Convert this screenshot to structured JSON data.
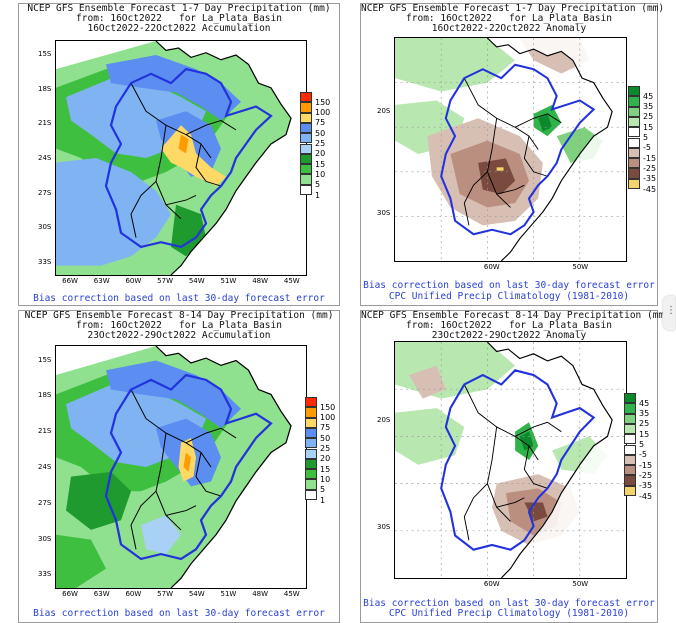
{
  "panels": [
    {
      "title": [
        "NCEP GFS Ensemble Forecast 1-7 Day Precipitation (mm)",
        "from: 16Oct2022   for La_Plata_Basin",
        "16Oct2022-22Oct2022 Accumulation"
      ],
      "captions": [
        "Bias correction based on last 30-day forecast error"
      ],
      "lat_labels": [
        "15S",
        "18S",
        "21S",
        "24S",
        "27S",
        "30S",
        "33S"
      ],
      "lon_labels": [
        "66W",
        "63W",
        "60W",
        "57W",
        "54W",
        "51W",
        "48W",
        "45W"
      ],
      "legend": [
        "150",
        "100",
        "75",
        "50",
        "25",
        "20",
        "15",
        "10",
        "5",
        "1"
      ],
      "kind": "accumulation"
    },
    {
      "title": [
        "NCEP GFS Ensemble Forecast 1-7 Day Precipitation (mm)",
        "from: 16Oct2022   for La_Plata_Basin",
        "16Oct2022-22Oct2022 Anomaly"
      ],
      "captions": [
        "Bias correction based on last 30-day forecast error",
        "CPC Unified Precip Climatology (1981-2010)"
      ],
      "lat_labels": [
        "20S",
        "30S"
      ],
      "lon_labels": [
        "60W",
        "50W"
      ],
      "legend": [
        "45",
        "35",
        "25",
        "15",
        "5",
        "-5",
        "-15",
        "-25",
        "-35",
        "-45"
      ],
      "kind": "anomaly"
    },
    {
      "title": [
        "NCEP GFS Ensemble Forecast 8-14 Day Precipitation (mm)",
        "from: 16Oct2022   for La_Plata_Basin",
        "23Oct2022-29Oct2022 Accumulation"
      ],
      "captions": [
        "Bias correction based on last 30-day forecast error"
      ],
      "lat_labels": [
        "15S",
        "18S",
        "21S",
        "24S",
        "27S",
        "30S",
        "33S"
      ],
      "lon_labels": [
        "66W",
        "63W",
        "60W",
        "57W",
        "54W",
        "51W",
        "48W",
        "45W"
      ],
      "legend": [
        "150",
        "100",
        "75",
        "50",
        "25",
        "20",
        "15",
        "10",
        "5",
        "1"
      ],
      "kind": "accumulation"
    },
    {
      "title": [
        "NCEP GFS Ensemble Forecast 8-14 Day Precipitation (mm)",
        "from: 16Oct2022   for La_Plata_Basin",
        "23Oct2022-29Oct2022 Anomaly"
      ],
      "captions": [
        "Bias correction based on last 30-day forecast error",
        "CPC Unified Precip Climatology (1981-2010)"
      ],
      "lat_labels": [
        "20S",
        "30S"
      ],
      "lon_labels": [
        "60W",
        "50W"
      ],
      "legend": [
        "45",
        "35",
        "25",
        "15",
        "5",
        "-5",
        "-15",
        "-25",
        "-35",
        "-45"
      ],
      "kind": "anomaly"
    }
  ],
  "colors": {
    "accumulation_scale": [
      "#ff2a00",
      "#ff9a00",
      "#ffd966",
      "#5b8ef0",
      "#7fb3f2",
      "#a9d0f5",
      "#1e9a2e",
      "#3fbf3f",
      "#8fe08f",
      "#ffffff"
    ],
    "anomaly_scale": [
      "#0a8a2a",
      "#2fb34a",
      "#7fd07f",
      "#b8e8b0",
      "#ffffff",
      "#ffffff",
      "#d8bfb4",
      "#bb8f80",
      "#7a4a3e",
      "#f3d36a"
    ],
    "basin_outline": "#2233dd",
    "caption_text": "#2a3fd6"
  }
}
